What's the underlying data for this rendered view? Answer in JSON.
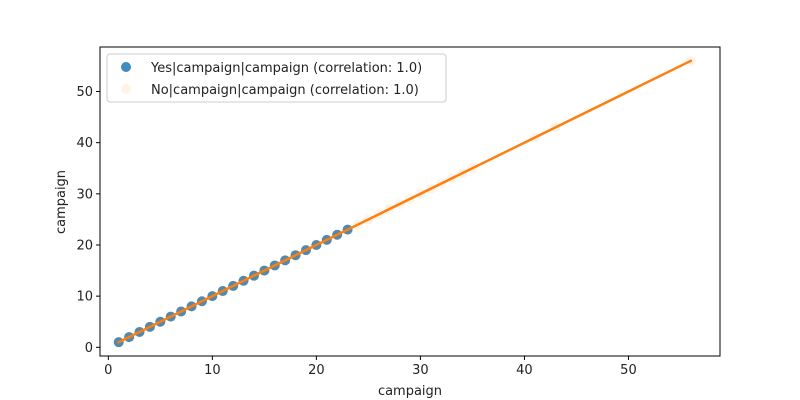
{
  "chart_data": {
    "type": "scatter",
    "title": "",
    "xlabel": "campaign",
    "ylabel": "campaign",
    "xlim": [
      -0.8,
      58.8
    ],
    "ylim": [
      -1.7,
      58.7
    ],
    "xticks": [
      0,
      10,
      20,
      30,
      40,
      50
    ],
    "yticks": [
      0,
      10,
      20,
      30,
      40,
      50
    ],
    "grid": false,
    "legend_position": "top-left",
    "series": [
      {
        "name": "Yes|campaign|campaign (correlation: 1.0)",
        "color": "#1f77b4",
        "alpha": 0.85,
        "x": [
          1,
          2,
          3,
          4,
          5,
          6,
          7,
          8,
          9,
          10,
          11,
          12,
          13,
          14,
          15,
          16,
          17,
          18,
          19,
          20,
          21,
          22,
          23
        ],
        "y": [
          1,
          2,
          3,
          4,
          5,
          6,
          7,
          8,
          9,
          10,
          11,
          12,
          13,
          14,
          15,
          16,
          17,
          18,
          19,
          20,
          21,
          22,
          23
        ]
      },
      {
        "name": "No|campaign|campaign (correlation: 1.0)",
        "color": "#ff7f0e",
        "alpha": 0.1,
        "x": [
          1,
          2,
          3,
          4,
          5,
          6,
          7,
          8,
          9,
          10,
          11,
          12,
          13,
          14,
          15,
          16,
          17,
          18,
          19,
          20,
          21,
          22,
          23,
          24,
          25,
          26,
          27,
          28,
          29,
          30,
          31,
          32,
          33,
          34,
          35,
          41,
          43,
          56
        ],
        "y": [
          1,
          2,
          3,
          4,
          5,
          6,
          7,
          8,
          9,
          10,
          11,
          12,
          13,
          14,
          15,
          16,
          17,
          18,
          19,
          20,
          21,
          22,
          23,
          24,
          25,
          26,
          27,
          28,
          29,
          30,
          31,
          32,
          33,
          34,
          35,
          41,
          43,
          56
        ]
      }
    ],
    "fit_line": {
      "color": "#ff7f0e",
      "x": [
        1,
        56
      ],
      "y": [
        1,
        56
      ]
    }
  }
}
